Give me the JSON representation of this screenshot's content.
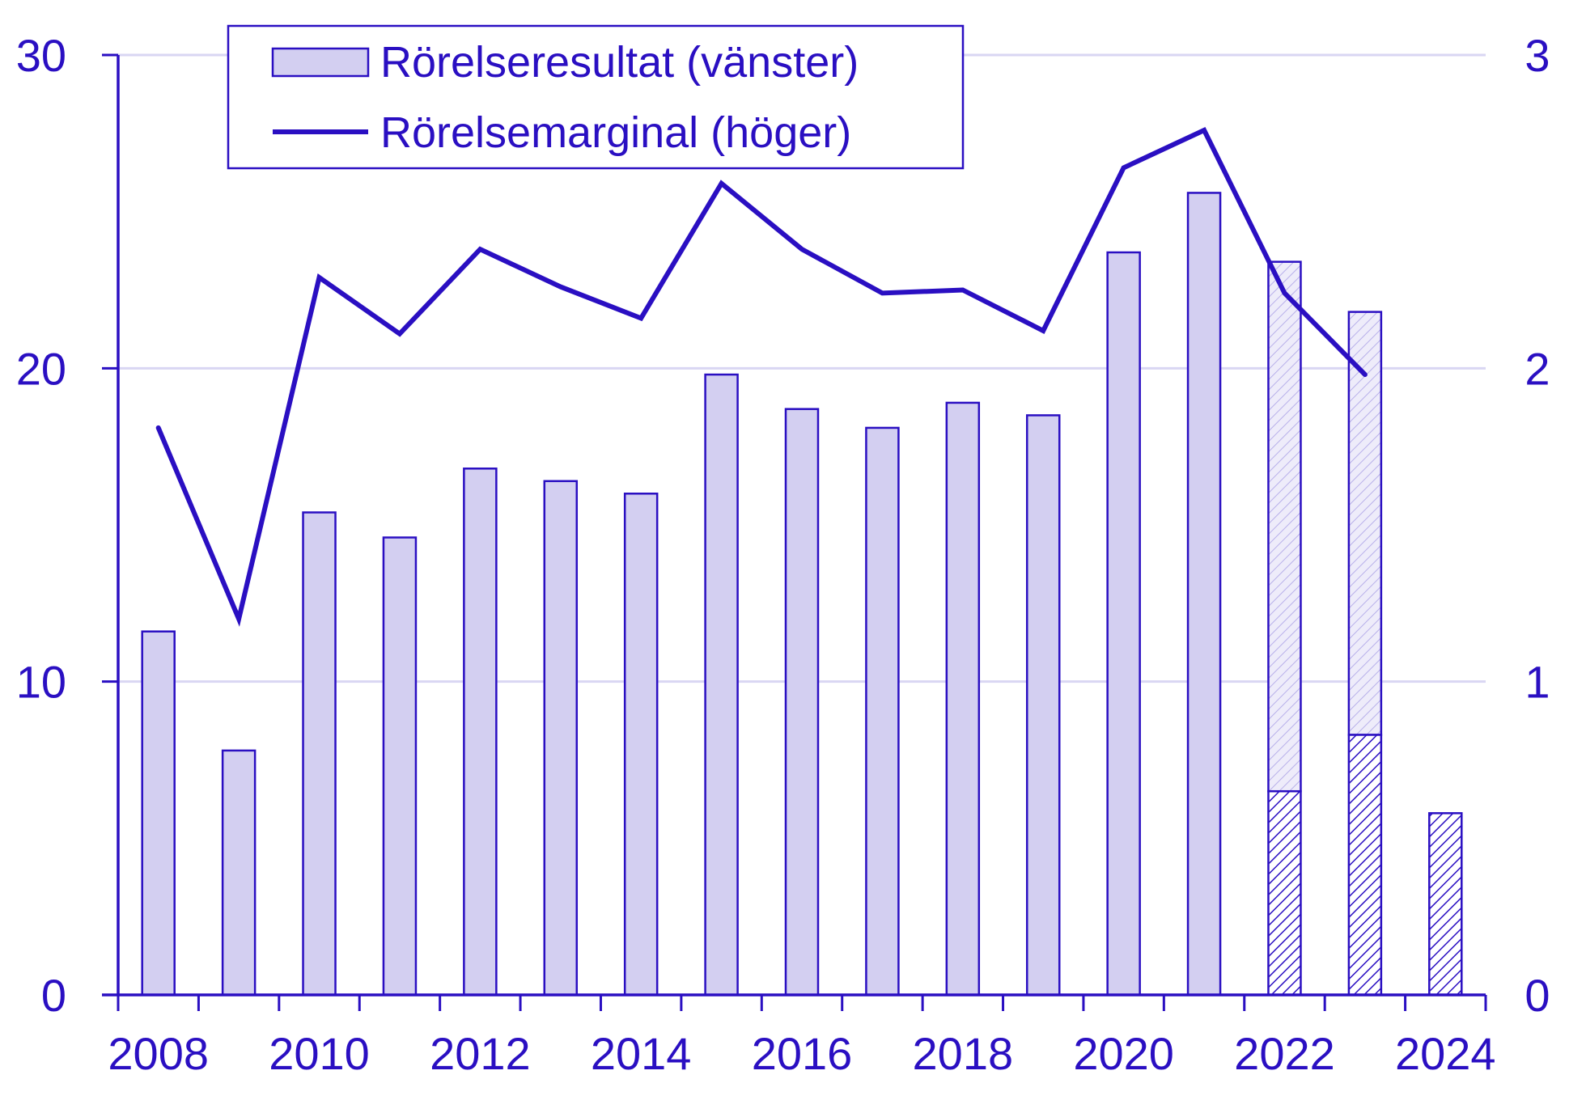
{
  "colors": {
    "ink": "#2a0fc2",
    "bar_fill": "#d3cff1",
    "grid": "#d9d6f3",
    "background": "#ffffff"
  },
  "chart_data": {
    "type": "bar",
    "x": [
      2008,
      2009,
      2010,
      2011,
      2012,
      2013,
      2014,
      2015,
      2016,
      2017,
      2018,
      2019,
      2020,
      2021,
      2022,
      2023,
      2024
    ],
    "xticks": [
      "2008",
      "2010",
      "2012",
      "2014",
      "2016",
      "2018",
      "2020",
      "2022",
      "2024"
    ],
    "y_left_ticks": [
      "0",
      "10",
      "20",
      "30"
    ],
    "y_right_ticks": [
      "0",
      "1",
      "2",
      "3"
    ],
    "ylim_left": [
      0,
      30
    ],
    "ylim_right": [
      0,
      3
    ],
    "grid": "horizontal",
    "legend_position": "top-left",
    "legend": [
      "Rörelseresultat (vänster)",
      "Rörelsemarginal (höger)"
    ],
    "series": [
      {
        "name": "Rörelseresultat (vänster)",
        "type": "bar",
        "axis": "left",
        "values": [
          11.6,
          7.8,
          15.4,
          14.6,
          16.8,
          16.4,
          16.0,
          19.8,
          18.7,
          18.1,
          18.9,
          18.5,
          23.7,
          25.6,
          23.4,
          21.8,
          0
        ],
        "hatched": [
          0,
          0,
          0,
          0,
          0,
          0,
          0,
          0,
          0,
          0,
          0,
          0,
          0,
          0,
          6.5,
          8.3,
          5.8
        ]
      },
      {
        "name": "Rörelsemarginal (höger)",
        "type": "line",
        "axis": "right",
        "values": [
          1.81,
          1.2,
          2.29,
          2.11,
          2.38,
          2.26,
          2.16,
          2.59,
          2.38,
          2.24,
          2.25,
          2.12,
          2.64,
          2.76,
          2.24,
          1.98,
          null
        ]
      }
    ]
  }
}
